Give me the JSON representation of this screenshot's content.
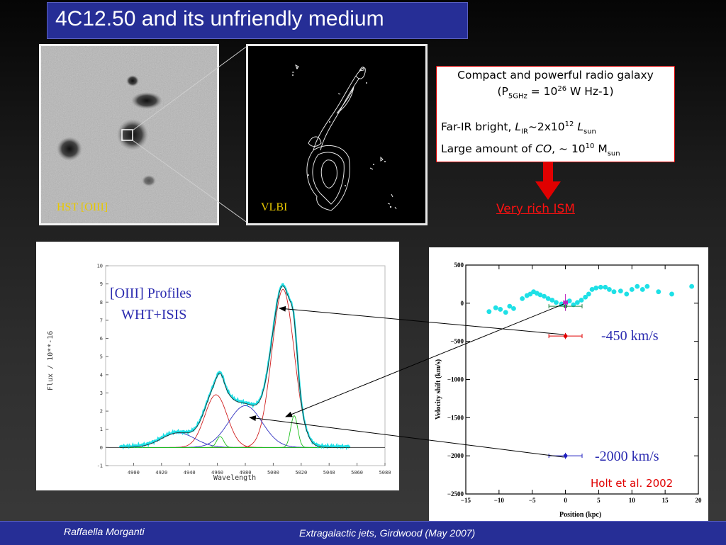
{
  "title": "4C12.50 and its unfriendly medium",
  "images": {
    "hst_label": "HST [OIII]",
    "vlbi_label": "VLBI"
  },
  "info_box": {
    "line1": "Compact and powerful radio galaxy",
    "line2_pre": "(P",
    "line2_sub": "5GHz",
    "line2_mid": " = 10",
    "line2_sup": "26",
    "line2_post": " W Hz-1)",
    "line3_pre": "Far-IR bright, ",
    "line3_L": "L",
    "line3_Lsub": "IR",
    "line3_mid": "~2x10",
    "line3_sup": "12",
    "line3_L2": " L",
    "line3_L2sub": "sun",
    "line4_pre": "Large amount of ",
    "line4_co": "CO",
    "line4_mid": ", ~ 10",
    "line4_sup": "10",
    "line4_M": " M",
    "line4_Msub": "sun"
  },
  "rich_ism": "Very rich ISM",
  "colors": {
    "accent_blue": "#262e96",
    "red": "#e00000",
    "cyan": "#1ee0e6",
    "fit_red": "#d02020",
    "fit_blue": "#3030c0",
    "fit_green": "#20c020"
  },
  "chart_data": [
    {
      "type": "line",
      "title": "[OIII] Profiles",
      "subtitle": "WHT+ISIS",
      "xlabel": "Wavelength",
      "ylabel": "Flux / 10**-16",
      "xlim": [
        4880,
        5080
      ],
      "ylim": [
        -1,
        10
      ],
      "xticks": [
        "4900",
        "4920",
        "4940",
        "4960",
        "4980",
        "5000",
        "5020",
        "5040",
        "5060",
        "5080"
      ],
      "yticks": [
        "-1",
        "0",
        "1",
        "2",
        "3",
        "4",
        "5",
        "6",
        "7",
        "8",
        "9",
        "10"
      ],
      "components": [
        {
          "color": "red",
          "center": 4959,
          "sigma": 8,
          "amp": 2.9
        },
        {
          "color": "red",
          "center": 5007,
          "sigma": 8,
          "amp": 8.7
        },
        {
          "color": "blue",
          "center": 4980,
          "sigma": 12,
          "amp": 2.3
        },
        {
          "color": "blue",
          "center": 4932,
          "sigma": 12,
          "amp": 0.8
        },
        {
          "color": "green",
          "center": 4962,
          "sigma": 2.5,
          "amp": 0.6
        },
        {
          "color": "green",
          "center": 5015,
          "sigma": 2.5,
          "amp": 1.75
        }
      ]
    },
    {
      "type": "scatter",
      "xlabel": "Position (kpc)",
      "ylabel": "Velocity shift (km/s)",
      "xlim": [
        -15,
        20
      ],
      "ylim": [
        -2500,
        500
      ],
      "xticks": [
        "−15",
        "−10",
        "−5",
        "0",
        "5",
        "10",
        "15",
        "20"
      ],
      "yticks": [
        "500",
        "0",
        "−500",
        "−1000",
        "−1500",
        "−2000",
        "−2500"
      ],
      "points_x": [
        -11.5,
        -10.5,
        -9.8,
        -9,
        -8.4,
        -7.8,
        -6.5,
        -5.8,
        -5.3,
        -4.8,
        -4.3,
        -3.8,
        -3.2,
        -2.6,
        -2,
        -1.4,
        -0.6,
        0.1,
        0.6,
        1.2,
        1.8,
        2.4,
        3,
        3.5,
        4,
        4.6,
        5.3,
        6,
        6.6,
        7.3,
        8.3,
        9.2,
        10,
        10.8,
        11.6,
        12.3,
        14,
        16,
        19
      ],
      "points_y": [
        -110,
        -60,
        -80,
        -120,
        -40,
        -70,
        60,
        100,
        120,
        150,
        130,
        110,
        90,
        60,
        40,
        10,
        -10,
        10,
        30,
        -20,
        10,
        40,
        80,
        120,
        180,
        200,
        210,
        210,
        180,
        150,
        160,
        120,
        180,
        220,
        180,
        220,
        150,
        120,
        220
      ],
      "components": [
        {
          "label": "-450 km/s",
          "x": 0,
          "y": -430,
          "xerr": 2.5,
          "yerr": 40,
          "color": "red"
        },
        {
          "label": "-2000 km/s",
          "x": 0,
          "y": -2000,
          "xerr": 2.5,
          "yerr": 40,
          "color": "blue"
        },
        {
          "label": "",
          "x": 0,
          "y": -40,
          "xerr": 2.5,
          "yerr": 60,
          "color": "green"
        },
        {
          "label": "",
          "x": 0,
          "y": 10,
          "xerr": 0.3,
          "yerr": 110,
          "color": "magenta"
        }
      ],
      "annotation": "Holt et al. 2002"
    }
  ],
  "footer": {
    "author": "Raffaella Morganti",
    "event": "Extragalactic jets, Girdwood (May 2007)"
  }
}
